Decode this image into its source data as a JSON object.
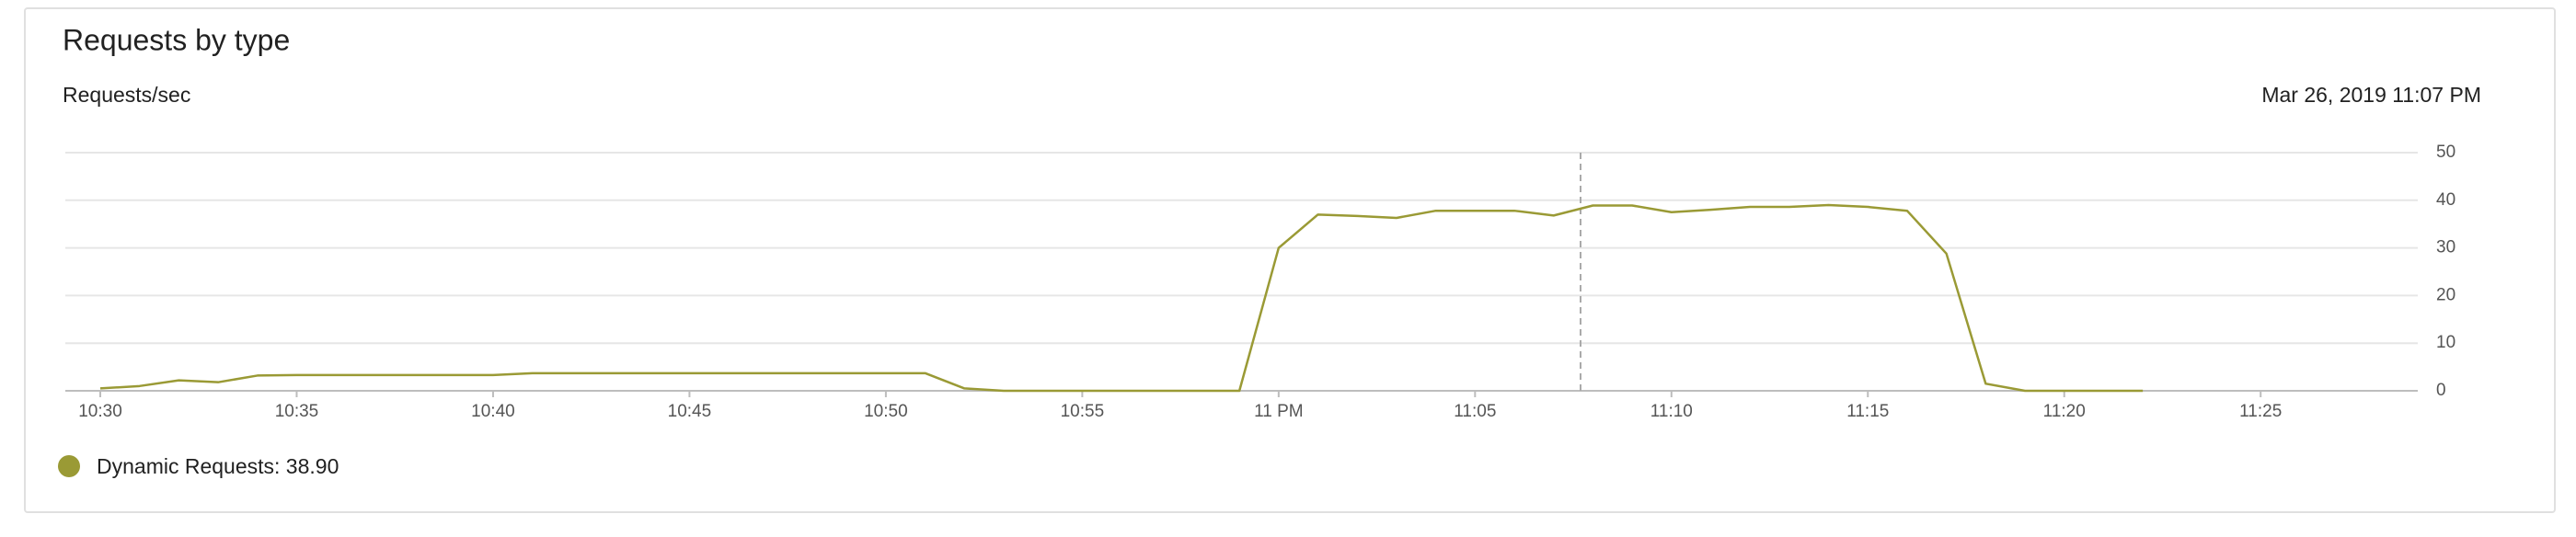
{
  "chart_data": {
    "type": "line",
    "title": "Requests by type",
    "y_label": "Requests/sec",
    "timestamp": "Mar 26, 2019 11:07 PM",
    "categories": [
      "10:30",
      null,
      null,
      null,
      null,
      "10:35",
      null,
      null,
      null,
      null,
      "10:40",
      null,
      null,
      null,
      null,
      "10:45",
      null,
      null,
      null,
      null,
      "10:50",
      null,
      null,
      null,
      null,
      "10:55",
      null,
      null,
      null,
      null,
      "11 PM",
      null,
      null,
      null,
      null,
      "11:05",
      null,
      null,
      null,
      null,
      "11:10",
      null,
      null,
      null,
      null,
      "11:15",
      null,
      null,
      null,
      null,
      "11:20",
      null,
      null,
      null,
      null,
      "11:25",
      null,
      null,
      null,
      null
    ],
    "series": [
      {
        "name": "Dynamic Requests: 38.90",
        "color": "#9a9a35",
        "values": [
          0.5,
          1,
          2.2,
          1.8,
          3.2,
          3.3,
          3.3,
          3.3,
          3.3,
          3.3,
          3.3,
          3.7,
          3.7,
          3.7,
          3.7,
          3.7,
          3.7,
          3.7,
          3.7,
          3.7,
          3.7,
          3.7,
          0.5,
          0,
          0,
          0,
          0,
          0,
          0,
          0,
          30,
          37,
          36.7,
          36.3,
          37.8,
          37.8,
          37.8,
          36.8,
          38.9,
          38.9,
          37.5,
          38,
          38.6,
          38.6,
          39,
          38.6,
          37.8,
          28.8,
          1.5,
          0,
          0,
          0,
          0,
          null,
          null,
          null,
          null,
          null,
          null,
          null
        ]
      }
    ],
    "ylim": [
      0,
      50
    ],
    "yticks": [
      0,
      10,
      20,
      30,
      40,
      50
    ],
    "grid": true
  }
}
